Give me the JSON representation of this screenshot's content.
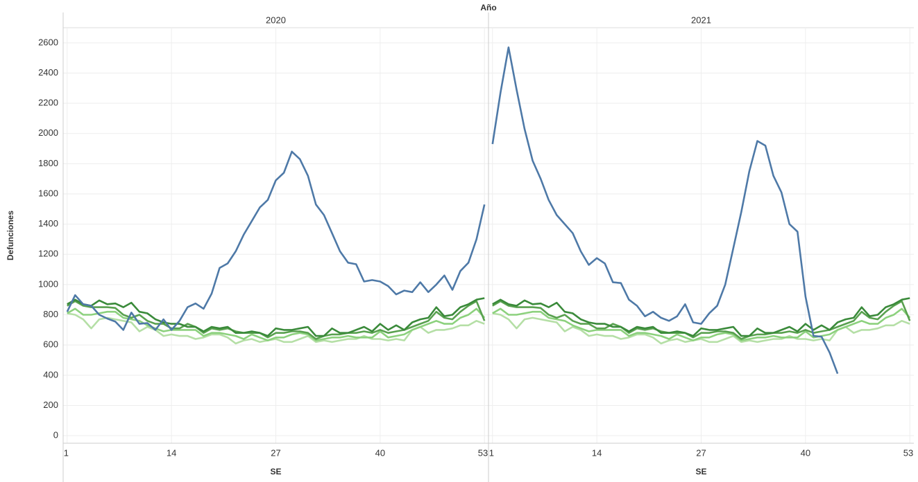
{
  "chart_data": {
    "type": "line",
    "title": "Año",
    "x_label": "SE",
    "y_label": "Defunciones",
    "xlim": [
      0.5,
      53.5
    ],
    "xticks": [
      1,
      14,
      27,
      40,
      53
    ],
    "ylim": [
      -50,
      2700
    ],
    "yticks": [
      0,
      200,
      400,
      600,
      800,
      1000,
      1200,
      1400,
      1600,
      1800,
      2000,
      2200,
      2400,
      2600
    ],
    "grid": true,
    "x": [
      1,
      2,
      3,
      4,
      5,
      6,
      7,
      8,
      9,
      10,
      11,
      12,
      13,
      14,
      15,
      16,
      17,
      18,
      19,
      20,
      21,
      22,
      23,
      24,
      25,
      26,
      27,
      28,
      29,
      30,
      31,
      32,
      33,
      34,
      35,
      36,
      37,
      38,
      39,
      40,
      41,
      42,
      43,
      44,
      45,
      46,
      47,
      48,
      49,
      50,
      51,
      52,
      53
    ],
    "panels": [
      {
        "label": "2020",
        "series": [
          {
            "color": "#b5dfa6",
            "values": [
              810,
              800,
              770,
              710,
              770,
              780,
              770,
              760,
              750,
              690,
              720,
              700,
              660,
              670,
              660,
              660,
              640,
              650,
              670,
              670,
              650,
              610,
              630,
              640,
              620,
              630,
              640,
              620,
              620,
              640,
              660,
              620,
              630,
              620,
              630,
              640,
              640,
              660,
              640,
              640,
              630,
              640,
              630,
              700,
              720,
              680,
              700,
              700,
              710,
              730,
              730,
              760,
              740
            ]
          },
          {
            "color": "#8cd17d",
            "values": [
              810,
              840,
              800,
              800,
              810,
              820,
              820,
              780,
              770,
              760,
              730,
              710,
              690,
              700,
              700,
              700,
              700,
              660,
              680,
              680,
              670,
              660,
              640,
              670,
              650,
              630,
              650,
              650,
              670,
              680,
              670,
              630,
              640,
              650,
              650,
              660,
              650,
              650,
              650,
              690,
              650,
              660,
              670,
              700,
              720,
              740,
              760,
              740,
              740,
              780,
              800,
              840,
              780
            ]
          },
          {
            "color": "#59a14f",
            "values": [
              860,
              890,
              860,
              850,
              850,
              850,
              845,
              800,
              780,
              800,
              760,
              740,
              740,
              710,
              710,
              740,
              720,
              680,
              710,
              700,
              710,
              690,
              680,
              680,
              680,
              650,
              680,
              680,
              690,
              690,
              680,
              640,
              660,
              670,
              670,
              680,
              680,
              690,
              680,
              700,
              680,
              690,
              700,
              720,
              740,
              760,
              820,
              780,
              770,
              820,
              860,
              890,
              760
            ]
          },
          {
            "color": "#3a8a3a",
            "values": [
              870,
              900,
              870,
              860,
              895,
              870,
              875,
              850,
              880,
              820,
              810,
              770,
              750,
              740,
              740,
              720,
              720,
              690,
              720,
              710,
              720,
              680,
              680,
              690,
              680,
              660,
              710,
              700,
              700,
              710,
              720,
              660,
              660,
              710,
              680,
              680,
              700,
              720,
              690,
              740,
              700,
              730,
              700,
              750,
              770,
              780,
              850,
              790,
              800,
              850,
              870,
              900,
              910
            ]
          },
          {
            "color": "#4e79a7",
            "values": [
              820,
              930,
              870,
              860,
              800,
              775,
              755,
              700,
              815,
              740,
              745,
              700,
              770,
              700,
              760,
              850,
              875,
              840,
              940,
              1110,
              1140,
              1220,
              1330,
              1420,
              1510,
              1560,
              1690,
              1740,
              1880,
              1830,
              1720,
              1530,
              1460,
              1340,
              1220,
              1145,
              1135,
              1020,
              1030,
              1020,
              990,
              935,
              960,
              950,
              1015,
              950,
              1000,
              1060,
              965,
              1090,
              1145,
              1300,
              1530
            ]
          }
        ]
      },
      {
        "label": "2021",
        "series": [
          {
            "color": "#b5dfa6",
            "values": [
              810,
              800,
              770,
              710,
              770,
              780,
              770,
              760,
              750,
              690,
              720,
              700,
              660,
              670,
              660,
              660,
              640,
              650,
              670,
              670,
              650,
              610,
              630,
              640,
              620,
              630,
              640,
              620,
              620,
              640,
              660,
              620,
              630,
              620,
              630,
              640,
              640,
              660,
              640,
              640,
              630,
              640,
              630,
              700,
              720,
              680,
              700,
              700,
              710,
              730,
              730,
              760,
              740
            ]
          },
          {
            "color": "#8cd17d",
            "values": [
              810,
              840,
              800,
              800,
              810,
              820,
              820,
              780,
              770,
              760,
              730,
              710,
              690,
              700,
              700,
              700,
              700,
              660,
              680,
              680,
              670,
              660,
              640,
              670,
              650,
              630,
              650,
              650,
              670,
              680,
              670,
              630,
              640,
              650,
              650,
              660,
              650,
              650,
              650,
              690,
              650,
              660,
              670,
              700,
              720,
              740,
              760,
              740,
              740,
              780,
              800,
              840,
              780
            ]
          },
          {
            "color": "#59a14f",
            "values": [
              860,
              890,
              860,
              850,
              850,
              850,
              845,
              800,
              780,
              800,
              760,
              740,
              740,
              710,
              710,
              740,
              720,
              680,
              710,
              700,
              710,
              690,
              680,
              680,
              680,
              650,
              680,
              680,
              690,
              690,
              680,
              640,
              660,
              670,
              670,
              680,
              680,
              690,
              680,
              700,
              680,
              690,
              700,
              720,
              740,
              760,
              820,
              780,
              770,
              820,
              860,
              890,
              760
            ]
          },
          {
            "color": "#3a8a3a",
            "values": [
              870,
              900,
              870,
              860,
              895,
              870,
              875,
              850,
              880,
              820,
              810,
              770,
              750,
              740,
              740,
              720,
              720,
              690,
              720,
              710,
              720,
              680,
              680,
              690,
              680,
              660,
              710,
              700,
              700,
              710,
              720,
              660,
              660,
              710,
              680,
              680,
              700,
              720,
              690,
              740,
              700,
              730,
              700,
              750,
              770,
              780,
              850,
              790,
              800,
              850,
              870,
              900,
              910
            ]
          },
          {
            "color": "#4e79a7",
            "values": [
              1930,
              2270,
              2570,
              2290,
              2030,
              1820,
              1700,
              1560,
              1460,
              1400,
              1340,
              1220,
              1130,
              1175,
              1140,
              1015,
              1010,
              900,
              860,
              790,
              820,
              780,
              760,
              790,
              870,
              750,
              740,
              810,
              860,
              1000,
              1240,
              1480,
              1750,
              1950,
              1920,
              1720,
              1610,
              1400,
              1350,
              920,
              660,
              655,
              550,
              410,
              null,
              null,
              null,
              null,
              null,
              null,
              null,
              null,
              null
            ]
          }
        ]
      }
    ]
  }
}
